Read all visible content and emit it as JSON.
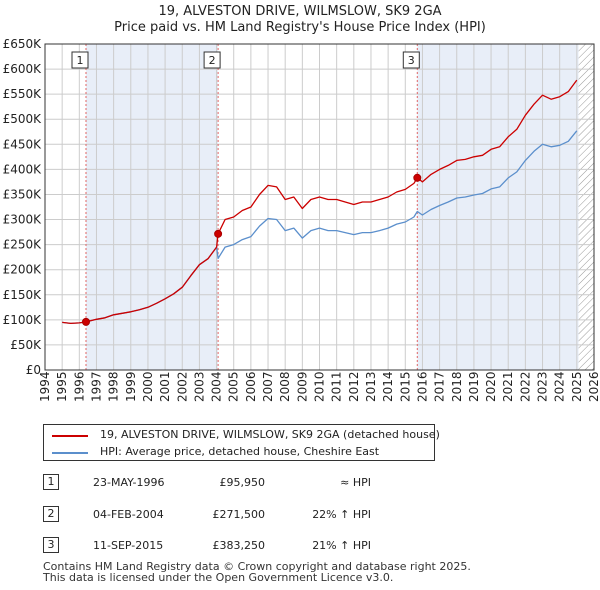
{
  "title": "19, ALVESTON DRIVE, WILMSLOW, SK9 2GA",
  "subtitle": "Price paid vs. HM Land Registry's House Price Index (HPI)",
  "colors": {
    "property_line": "#cc0000",
    "hpi_line": "#5b8fcc",
    "shade": "#e8eef8",
    "vline": "#e06666",
    "grid": "#cccccc",
    "hatch": "#999999"
  },
  "chart_data": {
    "type": "line",
    "xlim": [
      1994,
      2026
    ],
    "ylim": [
      0,
      650000
    ],
    "x_ticks": [
      1994,
      1995,
      1996,
      1997,
      1998,
      1999,
      2000,
      2001,
      2002,
      2003,
      2004,
      2005,
      2006,
      2007,
      2008,
      2009,
      2010,
      2011,
      2012,
      2013,
      2014,
      2015,
      2016,
      2017,
      2018,
      2019,
      2020,
      2021,
      2022,
      2023,
      2024,
      2025,
      2026
    ],
    "y_ticks": [
      0,
      50000,
      100000,
      150000,
      200000,
      250000,
      300000,
      350000,
      400000,
      450000,
      500000,
      550000,
      600000,
      650000
    ],
    "y_tick_labels": [
      "£0",
      "£50K",
      "£100K",
      "£150K",
      "£200K",
      "£250K",
      "£300K",
      "£350K",
      "£400K",
      "£450K",
      "£500K",
      "£550K",
      "£600K",
      "£650K"
    ],
    "hatch_from_year": 2025.1,
    "series": [
      {
        "name": "19, ALVESTON DRIVE, WILMSLOW, SK9 2GA (detached house)",
        "x": [
          1995.0,
          1995.5,
          1996.0,
          1996.39,
          1997.0,
          1997.5,
          1998.0,
          1998.5,
          1999.0,
          1999.5,
          2000.0,
          2000.5,
          2001.0,
          2001.5,
          2002.0,
          2002.5,
          2003.0,
          2003.5,
          2004.0,
          2004.09,
          2004.5,
          2005.0,
          2005.5,
          2006.0,
          2006.5,
          2007.0,
          2007.5,
          2008.0,
          2008.5,
          2009.0,
          2009.5,
          2010.0,
          2010.5,
          2011.0,
          2011.5,
          2012.0,
          2012.5,
          2013.0,
          2013.5,
          2014.0,
          2014.5,
          2015.0,
          2015.5,
          2015.7,
          2016.0,
          2016.5,
          2017.0,
          2017.5,
          2018.0,
          2018.5,
          2019.0,
          2019.5,
          2020.0,
          2020.5,
          2021.0,
          2021.5,
          2022.0,
          2022.5,
          2023.0,
          2023.5,
          2024.0,
          2024.5,
          2025.0
        ],
        "values": [
          95000,
          93000,
          94000,
          95950,
          101000,
          104000,
          110000,
          113000,
          116000,
          120000,
          125000,
          133000,
          142000,
          152000,
          165000,
          188000,
          210000,
          222000,
          245000,
          271500,
          300000,
          305000,
          318000,
          325000,
          350000,
          368000,
          365000,
          340000,
          345000,
          322000,
          340000,
          345000,
          340000,
          340000,
          335000,
          330000,
          335000,
          335000,
          340000,
          345000,
          355000,
          360000,
          372000,
          383250,
          375000,
          390000,
          400000,
          408000,
          418000,
          420000,
          425000,
          428000,
          440000,
          445000,
          465000,
          480000,
          508000,
          530000,
          548000,
          540000,
          545000,
          555000,
          578000
        ]
      },
      {
        "name": "HPI: Average price, detached house, Cheshire East",
        "x": [
          1995.0,
          1995.5,
          1996.0,
          1996.39,
          1997.0,
          1997.5,
          1998.0,
          1998.5,
          1999.0,
          1999.5,
          2000.0,
          2000.5,
          2001.0,
          2001.5,
          2002.0,
          2002.5,
          2003.0,
          2003.5,
          2004.0,
          2004.09,
          2004.5,
          2005.0,
          2005.5,
          2006.0,
          2006.5,
          2007.0,
          2007.5,
          2008.0,
          2008.5,
          2009.0,
          2009.5,
          2010.0,
          2010.5,
          2011.0,
          2011.5,
          2012.0,
          2012.5,
          2013.0,
          2013.5,
          2014.0,
          2014.5,
          2015.0,
          2015.5,
          2015.7,
          2016.0,
          2016.5,
          2017.0,
          2017.5,
          2018.0,
          2018.5,
          2019.0,
          2019.5,
          2020.0,
          2020.5,
          2021.0,
          2021.5,
          2022.0,
          2022.5,
          2023.0,
          2023.5,
          2024.0,
          2024.5,
          2025.0
        ],
        "values": [
          95000,
          93000,
          94000,
          95950,
          101000,
          104000,
          110000,
          113000,
          116000,
          120000,
          125000,
          133000,
          142000,
          152000,
          165000,
          188000,
          210000,
          222000,
          245000,
          222500,
          245000,
          250000,
          260000,
          266000,
          287000,
          302000,
          300000,
          278000,
          283000,
          263000,
          278000,
          283000,
          278000,
          278000,
          274000,
          270000,
          274000,
          274000,
          278000,
          283000,
          291000,
          295000,
          305000,
          316000,
          309000,
          320000,
          328000,
          335000,
          343000,
          345000,
          349000,
          352000,
          361000,
          365000,
          383000,
          395000,
          418000,
          436000,
          450000,
          445000,
          448000,
          456000,
          477000
        ]
      }
    ],
    "transactions": [
      {
        "id": "1",
        "date": "23-MAY-1996",
        "year": 1996.39,
        "price": 95950,
        "price_label": "£95,950",
        "hpi": "≈ HPI"
      },
      {
        "id": "2",
        "date": "04-FEB-2004",
        "year": 2004.09,
        "price": 271500,
        "price_label": "£271,500",
        "hpi": "22% ↑ HPI"
      },
      {
        "id": "3",
        "date": "11-SEP-2015",
        "year": 2015.7,
        "price": 383250,
        "price_label": "£383,250",
        "hpi": "21% ↑ HPI"
      }
    ]
  },
  "footer": {
    "line1": "Contains HM Land Registry data © Crown copyright and database right 2025.",
    "line2": "This data is licensed under the Open Government Licence v3.0."
  }
}
